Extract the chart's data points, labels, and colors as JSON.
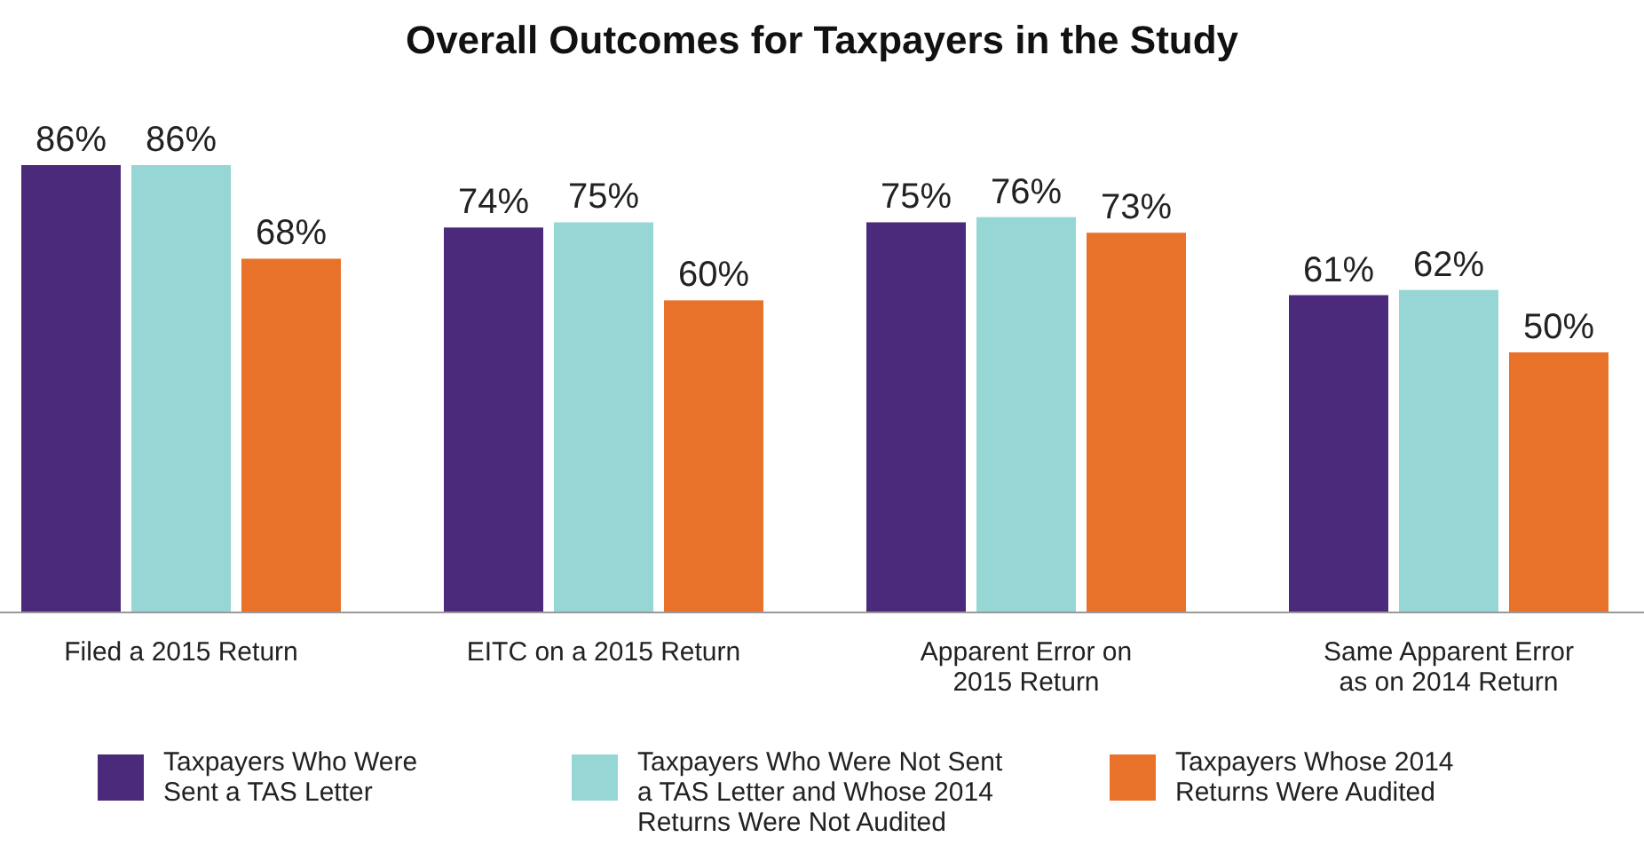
{
  "chart_data": {
    "type": "bar",
    "title": "Overall Outcomes for Taxpayers in the Study",
    "categories": [
      "Filed a 2015 Return",
      "EITC on a 2015 Return",
      "Apparent Error on 2015 Return",
      "Same Apparent Error as on 2014 Return"
    ],
    "series": [
      {
        "name": "Taxpayers Who Were Sent a TAS Letter",
        "color": "#4b2a7b",
        "values": [
          86,
          74,
          75,
          61
        ],
        "value_labels": [
          "86%",
          "74%",
          "75%",
          "61%"
        ]
      },
      {
        "name": "Taxpayers Who Were Not Sent a TAS Letter and Whose 2014 Returns Were Not Audited",
        "color": "#96d7d6",
        "values": [
          86,
          75,
          76,
          62
        ],
        "value_labels": [
          "86%",
          "75%",
          "76%",
          "62%"
        ]
      },
      {
        "name": "Taxpayers Whose 2014 Returns Were Audited",
        "color": "#e8722a",
        "values": [
          68,
          60,
          73,
          50
        ],
        "value_labels": [
          "68%",
          "60%",
          "73%",
          "50%"
        ]
      }
    ],
    "legend": "bottom"
  }
}
